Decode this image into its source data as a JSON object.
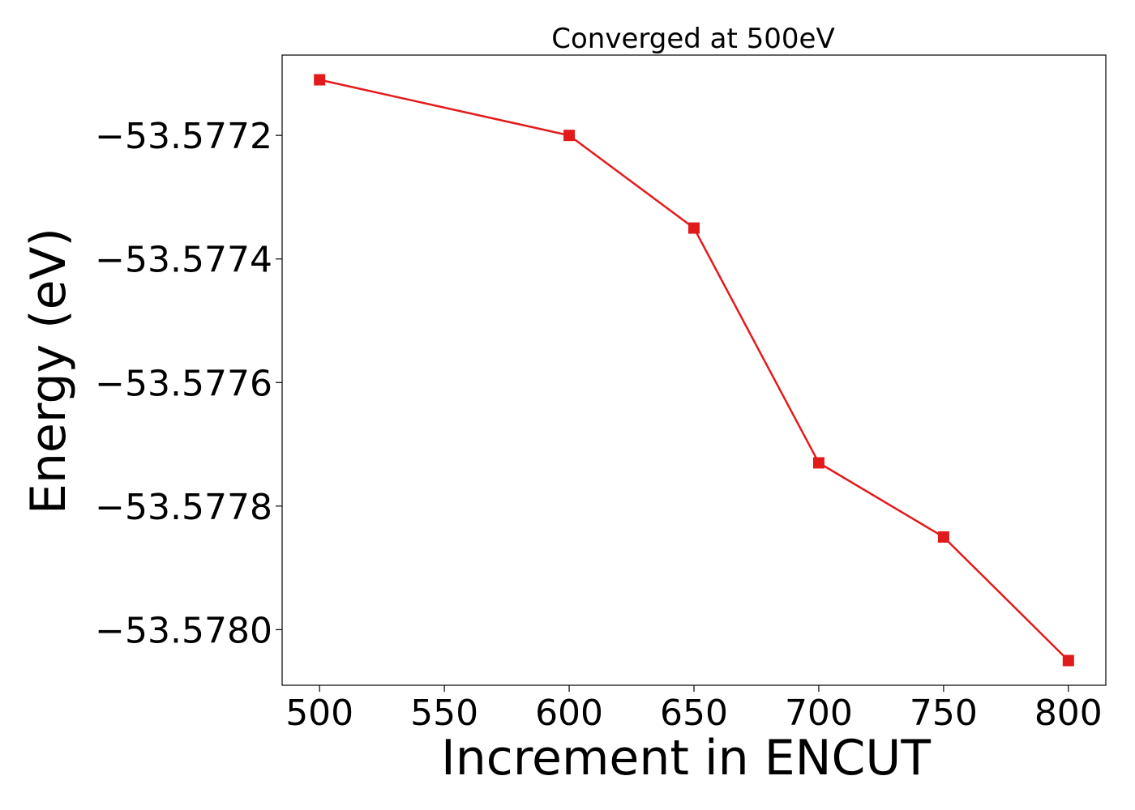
{
  "chart_data": {
    "type": "line",
    "title": "Converged at 500eV",
    "xlabel": "Increment in ENCUT",
    "ylabel": "Energy (eV)",
    "x": [
      500,
      600,
      650,
      700,
      750,
      800
    ],
    "series": [
      {
        "values": [
          -53.57711,
          -53.5772,
          -53.57735,
          -53.57773,
          -53.57785,
          -53.57805
        ],
        "color": "#e31a1c",
        "marker": "square"
      }
    ],
    "xlim": [
      485,
      815
    ],
    "ylim": [
      -53.57809,
      -53.57707
    ],
    "xticks": [
      500,
      550,
      600,
      650,
      700,
      750,
      800
    ],
    "xtick_labels": [
      "500",
      "550",
      "600",
      "650",
      "700",
      "750",
      "800"
    ],
    "yticks": [
      -53.5772,
      -53.5774,
      -53.5776,
      -53.5778,
      -53.578
    ],
    "ytick_labels": [
      "−53.5772",
      "−53.5774",
      "−53.5776",
      "−53.5778",
      "−53.5780"
    ],
    "grid": false,
    "legend": "none"
  }
}
